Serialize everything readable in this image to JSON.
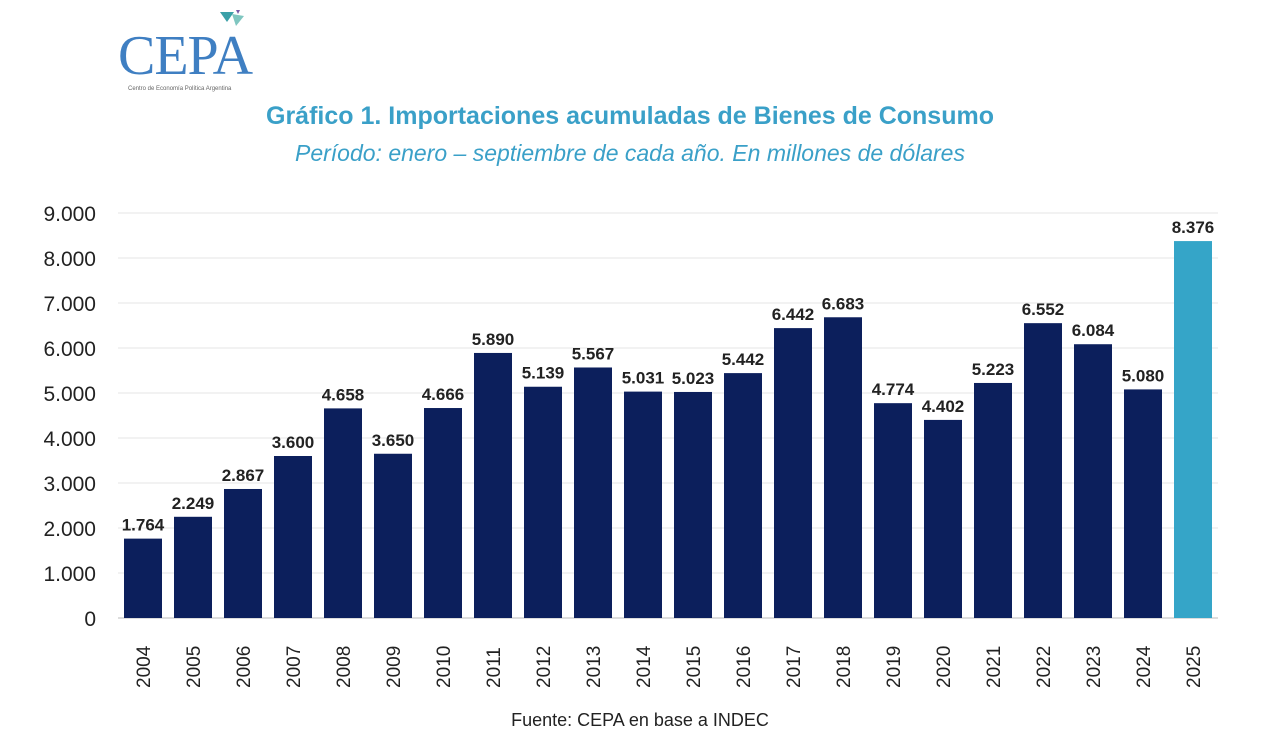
{
  "logo": {
    "name": "CEPA",
    "subtitle": "Centro de Economía Política Argentina"
  },
  "colors": {
    "bar": "#0c1f5c",
    "highlight": "#35a5c8",
    "title": "#3aa0c8",
    "grid": "#e6e6e6"
  },
  "chart_data": {
    "type": "bar",
    "title": "Gráfico 1. Importaciones acumuladas de Bienes de Consumo",
    "subtitle": "Período: enero – septiembre de cada año. En millones de dólares",
    "xlabel": "",
    "ylabel": "",
    "ylim": [
      0,
      9000
    ],
    "yticks": [
      0,
      1000,
      2000,
      3000,
      4000,
      5000,
      6000,
      7000,
      8000,
      9000
    ],
    "ytick_labels": [
      "0",
      "1.000",
      "2.000",
      "3.000",
      "4.000",
      "5.000",
      "6.000",
      "7.000",
      "8.000",
      "9.000"
    ],
    "grid": true,
    "categories": [
      "2004",
      "2005",
      "2006",
      "2007",
      "2008",
      "2009",
      "2010",
      "2011",
      "2012",
      "2013",
      "2014",
      "2015",
      "2016",
      "2017",
      "2018",
      "2019",
      "2020",
      "2021",
      "2022",
      "2023",
      "2024",
      "2025"
    ],
    "values": [
      1764,
      2249,
      2867,
      3600,
      4658,
      3650,
      4666,
      5890,
      5139,
      5567,
      5031,
      5023,
      5442,
      6442,
      6683,
      4774,
      4402,
      5223,
      6552,
      6084,
      5080,
      8376
    ],
    "value_labels": [
      "1.764",
      "2.249",
      "2.867",
      "3.600",
      "4.658",
      "3.650",
      "4.666",
      "5.890",
      "5.139",
      "5.567",
      "5.031",
      "5.023",
      "5.442",
      "6.442",
      "6.683",
      "4.774",
      "4.402",
      "5.223",
      "6.552",
      "6.084",
      "5.080",
      "8.376"
    ],
    "highlight_category": "2025"
  },
  "source": "Fuente: CEPA en base a INDEC"
}
